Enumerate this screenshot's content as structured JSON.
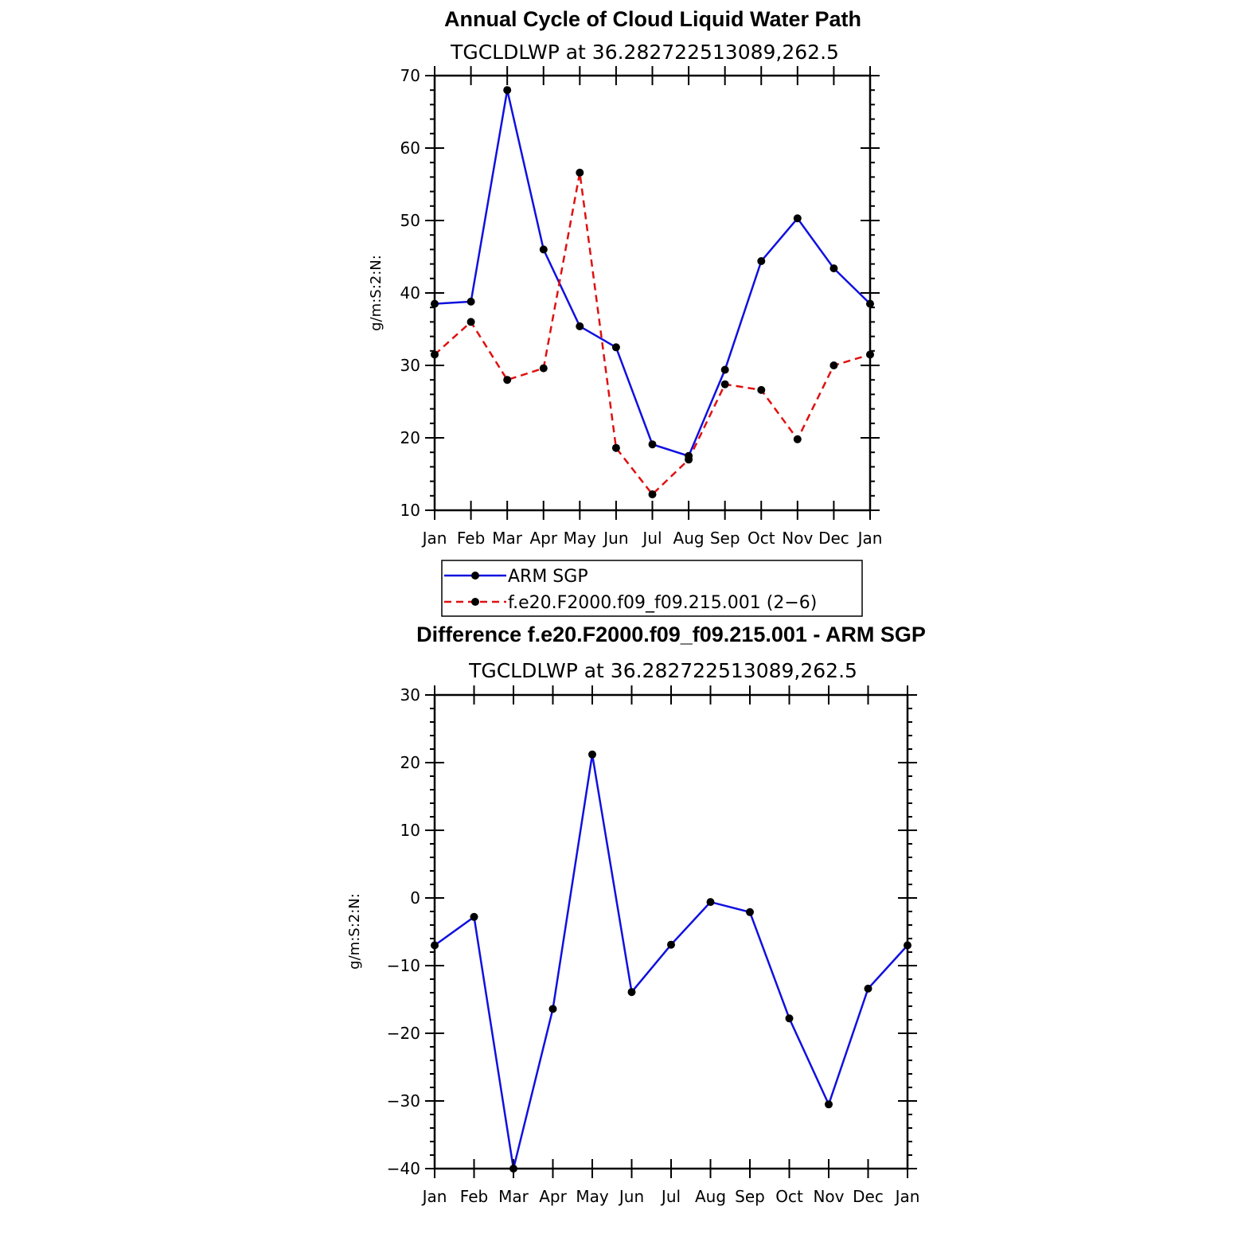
{
  "chart_data": [
    {
      "type": "line",
      "title": "Annual Cycle of Cloud Liquid Water Path",
      "subtitle": "TGCLDLWP at 36.282722513089,262.5",
      "xlabel": "",
      "ylabel": "g/m:S:2:N:",
      "categories": [
        "Jan",
        "Feb",
        "Mar",
        "Apr",
        "May",
        "Jun",
        "Jul",
        "Aug",
        "Sep",
        "Oct",
        "Nov",
        "Dec",
        "Jan"
      ],
      "ylim": [
        10,
        70
      ],
      "yticks": [
        10,
        20,
        30,
        40,
        50,
        60,
        70
      ],
      "legend_position": "below",
      "series": [
        {
          "name": "ARM SGP",
          "color": "#1010e0",
          "style": "solid",
          "values": [
            38.5,
            38.8,
            68.0,
            46.0,
            35.4,
            32.5,
            19.1,
            17.5,
            29.4,
            44.4,
            50.3,
            43.4,
            38.5
          ]
        },
        {
          "name": "f.e20.F2000.f09_f09.215.001 (2−6)",
          "color": "#e01010",
          "style": "dashed",
          "values": [
            31.5,
            36.0,
            28.0,
            29.6,
            56.6,
            18.6,
            12.2,
            17.0,
            27.4,
            26.6,
            19.8,
            30.0,
            31.5
          ]
        }
      ]
    },
    {
      "type": "line",
      "title": "Difference f.e20.F2000.f09_f09.215.001 - ARM SGP",
      "subtitle": "TGCLDLWP at 36.282722513089,262.5",
      "xlabel": "",
      "ylabel": "g/m:S:2:N:",
      "categories": [
        "Jan",
        "Feb",
        "Mar",
        "Apr",
        "May",
        "Jun",
        "Jul",
        "Aug",
        "Sep",
        "Oct",
        "Nov",
        "Dec",
        "Jan"
      ],
      "ylim": [
        -40,
        30
      ],
      "yticks": [
        -40,
        -30,
        -20,
        -10,
        0,
        10,
        20,
        30
      ],
      "series": [
        {
          "color": "#1010e0",
          "style": "solid",
          "values": [
            -7.0,
            -2.8,
            -40.0,
            -16.4,
            21.2,
            -13.9,
            -6.9,
            -0.6,
            -2.1,
            -17.8,
            -30.5,
            -13.4,
            -7.0
          ]
        }
      ]
    }
  ]
}
